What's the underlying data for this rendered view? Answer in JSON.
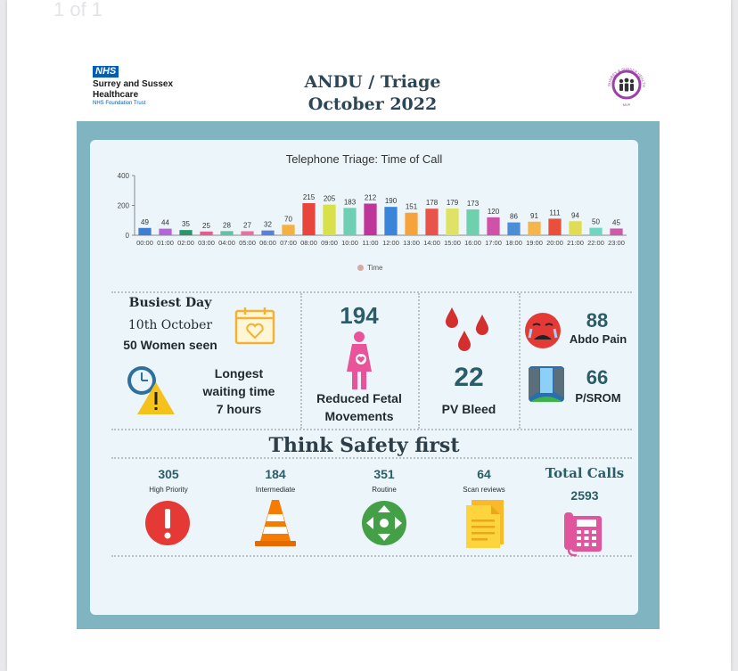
{
  "page_label": "1 of 1",
  "header": {
    "nhs_badge": "NHS",
    "org_name_line1": "Surrey and Sussex",
    "org_name_line2": "Healthcare",
    "org_sub": "NHS Foundation Trust",
    "title_line1": "ANDU / Triage",
    "title_line2": "October 2022",
    "mvp_logo_text": "SURREY & SUSSEX HEALTHCARE",
    "mvp_label": "MVP"
  },
  "chart_data": {
    "type": "bar",
    "title": "Telephone Triage: Time of Call",
    "categories": [
      "00:00",
      "01:00",
      "02:00",
      "03:00",
      "04:00",
      "05:00",
      "06:00",
      "07:00",
      "08:00",
      "09:00",
      "10:00",
      "11:00",
      "12:00",
      "13:00",
      "14:00",
      "15:00",
      "16:00",
      "17:00",
      "18:00",
      "19:00",
      "20:00",
      "21:00",
      "22:00",
      "23:00"
    ],
    "series": [
      {
        "name": "Time",
        "values": [
          49,
          44,
          35,
          25,
          28,
          27,
          32,
          70,
          215,
          205,
          183,
          212,
          190,
          151,
          178,
          179,
          173,
          120,
          86,
          91,
          111,
          94,
          50,
          45
        ]
      }
    ],
    "ylim": [
      0,
      400
    ],
    "yticks": [
      0,
      200,
      400
    ],
    "legend_position": "bottom",
    "colors": [
      "#3f7fd1",
      "#b465d8",
      "#2e9470",
      "#e85b8b",
      "#5fc4a5",
      "#e86fa0",
      "#5a7fd8",
      "#f5b042",
      "#e8453c",
      "#d8e04a",
      "#6fcfb5",
      "#c0359a",
      "#3a85d8",
      "#f5a33a",
      "#e8534a",
      "#e0e266",
      "#6fd0b0",
      "#d052a8",
      "#4a8ed8",
      "#f5b54a",
      "#e8503c",
      "#e0dc56",
      "#6fd6c0",
      "#d058a8"
    ]
  },
  "stats": {
    "busiest_title": "Busiest Day",
    "busiest_date": "10th October",
    "busiest_count": "50 Women seen",
    "waiting_line1": "Longest",
    "waiting_line2": "waiting time",
    "waiting_line3": "7 hours",
    "rfm_value": "194",
    "rfm_line1": "Reduced Fetal",
    "rfm_line2": "Movements",
    "pv_value": "22",
    "pv_label": "PV Bleed",
    "abdo_value": "88",
    "abdo_label": "Abdo Pain",
    "srom_value": "66",
    "srom_label": "P/SROM"
  },
  "safety": {
    "title": "Think Safety first",
    "items": [
      {
        "value": "305",
        "label": "High Priority",
        "icon": "exclamation-icon",
        "color": "#e53935"
      },
      {
        "value": "184",
        "label": "Intermediate",
        "icon": "traffic-cone-icon",
        "color": "#f57c00"
      },
      {
        "value": "351",
        "label": "Routine",
        "icon": "arrows-icon",
        "color": "#43a047"
      },
      {
        "value": "64",
        "label": "Scan reviews",
        "icon": "document-icon",
        "color": "#fbc02d"
      }
    ],
    "total_label": "Total Calls",
    "total_value": "2593",
    "total_icon": "telephone-icon"
  }
}
